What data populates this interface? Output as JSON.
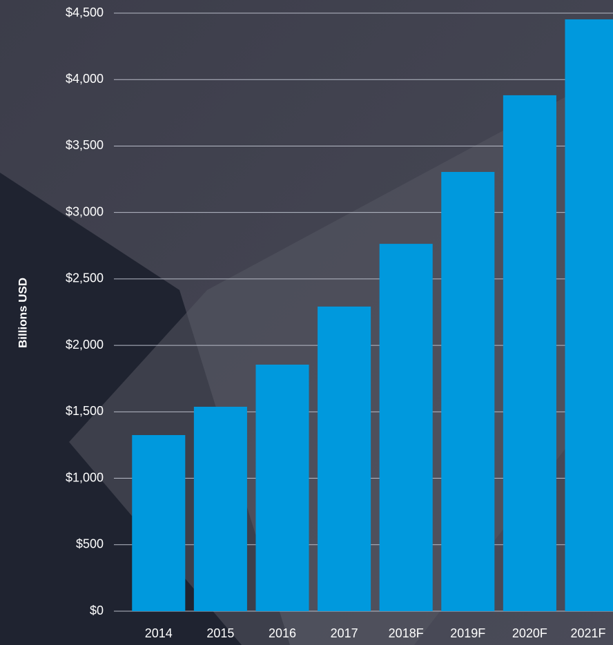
{
  "chart_data": {
    "type": "bar",
    "y_axis_label": "Billions USD",
    "categories": [
      "2014",
      "2015",
      "2016",
      "2017",
      "2018F",
      "2019F",
      "2020F",
      "2021F"
    ],
    "values": [
      1325,
      1538,
      1855,
      2292,
      2764,
      3305,
      3882,
      4453
    ],
    "color": "#0099dd",
    "ylim": [
      0,
      4500
    ],
    "yticks": [
      {
        "value": 0,
        "label": "$0"
      },
      {
        "value": 500,
        "label": "$500"
      },
      {
        "value": 1000,
        "label": "$1,000"
      },
      {
        "value": 1500,
        "label": "$1,500"
      },
      {
        "value": 2000,
        "label": "$2,000"
      },
      {
        "value": 2500,
        "label": "$2,500"
      },
      {
        "value": 3000,
        "label": "$3,000"
      },
      {
        "value": 3500,
        "label": "$3,500"
      },
      {
        "value": 4000,
        "label": "$4,000"
      },
      {
        "value": 4500,
        "label": "$4,500"
      }
    ],
    "grid": true
  }
}
